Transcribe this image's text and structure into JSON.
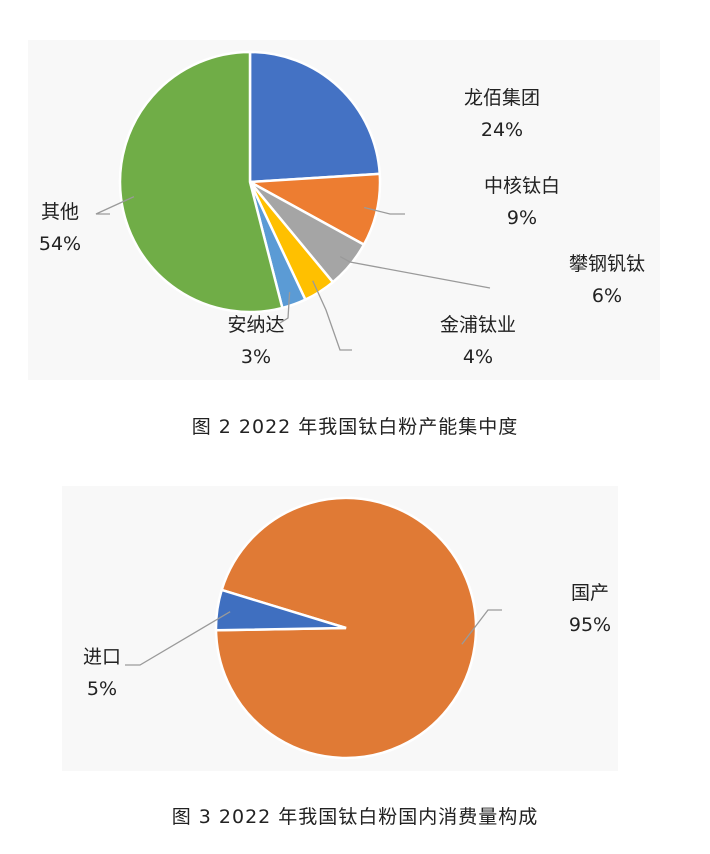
{
  "figures": [
    {
      "caption": "图 2  2022 年我国钛白粉产能集中度",
      "chart_data": {
        "type": "pie",
        "slices": [
          {
            "name": "龙佰集团",
            "value": 24,
            "label": "24%",
            "color": "#4472c4"
          },
          {
            "name": "中核钛白",
            "value": 9,
            "label": "9%",
            "color": "#ed7d31"
          },
          {
            "name": "攀钢钒钛",
            "value": 6,
            "label": "6%",
            "color": "#a5a5a5"
          },
          {
            "name": "金浦钛业",
            "value": 4,
            "label": "4%",
            "color": "#ffc000"
          },
          {
            "name": "安纳达",
            "value": 3,
            "label": "3%",
            "color": "#5b9bd5"
          },
          {
            "name": "其他",
            "value": 54,
            "label": "54%",
            "color": "#70ad47"
          }
        ],
        "start_angle_deg": 0,
        "direction": "clockwise",
        "label_position": "outside with leader lines"
      }
    },
    {
      "caption": "图 3  2022 年我国钛白粉国内消费量构成",
      "chart_data": {
        "type": "pie",
        "slices": [
          {
            "name": "国产",
            "value": 95,
            "label": "95%",
            "color": "#e07a35"
          },
          {
            "name": "进口",
            "value": 5,
            "label": "5%",
            "color": "#3f6fc0"
          }
        ],
        "direction": "clockwise",
        "label_position": "outside with leader lines"
      }
    }
  ]
}
